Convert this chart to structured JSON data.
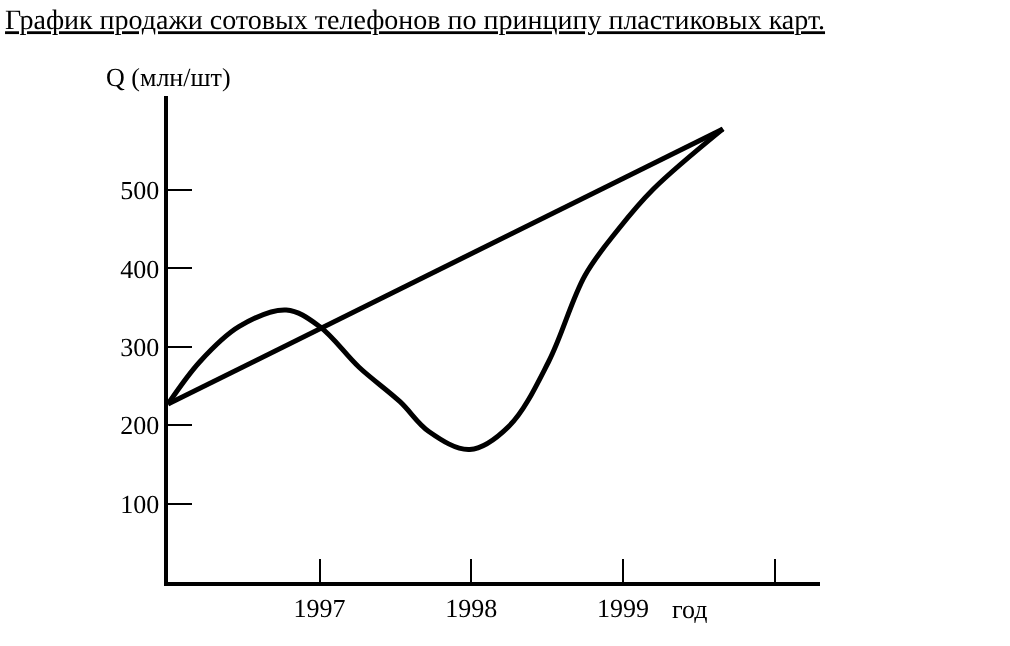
{
  "chart_data": {
    "type": "line",
    "title": "График продажи сотовых телефонов по принципу пластиковых карт.",
    "xlabel": "год",
    "ylabel": "Q (млн/шт)",
    "series": [
      {
        "color": "#000000",
        "x": [
          1996,
          1996.21,
          1996.47,
          1996.78,
          1997.0,
          1997.26,
          1997.53,
          1997.72,
          1997.99,
          1998.25,
          1998.51,
          1998.75,
          1998.97,
          1999.2,
          1999.66
        ],
        "values": [
          227,
          281,
          326,
          347,
          326,
          274,
          230,
          192,
          169,
          199,
          281,
          391,
          450,
          501,
          578
        ]
      },
      {
        "color": "#000000",
        "x": [
          1996,
          1999.66
        ],
        "values": [
          227,
          578
        ]
      }
    ],
    "xlim": [
      1996,
      2000.3
    ],
    "ylim": [
      0,
      620
    ],
    "xticks": [
      1997,
      1998,
      1999,
      {
        "value": 2000,
        "label": null
      }
    ],
    "yticks": [
      100,
      200,
      300,
      400,
      500
    ],
    "marker": "none",
    "line_style": "solid"
  }
}
